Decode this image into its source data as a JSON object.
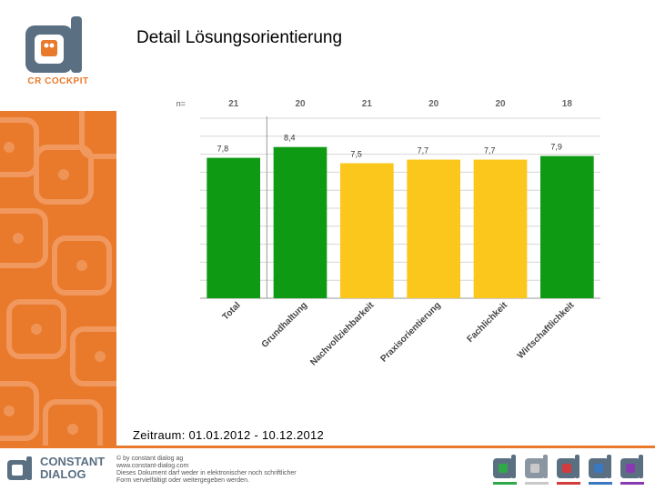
{
  "header": {
    "title": "Detail Lösungsorientierung"
  },
  "logo": {
    "text": "CR COCKPIT"
  },
  "period": "Zeitraum: 01.01.2012 - 10.12.2012",
  "footer": {
    "company_line1": "CONSTANT",
    "company_line2": "DIALOG",
    "copyright_lines": [
      "© by constant dialog ag",
      "www.constant-dialog.com",
      "Dieses Dokument darf weder in elektronischer noch schriftlicher",
      "Form vervielfältigt oder weitergegeben werden."
    ]
  },
  "colors": {
    "accent": "#e9792b",
    "green": "#0f9a14",
    "yellow": "#fcc71c"
  },
  "chart_data": {
    "type": "bar",
    "n_label": "n=",
    "categories": [
      "Total",
      "Grundhaltung",
      "Nachvollziehbarkeit",
      "Praxisorientierung",
      "Fachlichkeit",
      "Wirtschaftlichkeit"
    ],
    "n": [
      "21",
      "20",
      "21",
      "20",
      "20",
      "18"
    ],
    "values": [
      7.8,
      8.4,
      7.5,
      7.7,
      7.7,
      7.9
    ],
    "value_labels": [
      "7,8",
      "8,4",
      "7,5",
      "7,7",
      "7,7",
      "7,9"
    ],
    "colors": [
      "#0f9a14",
      "#0f9a14",
      "#fcc71c",
      "#fcc71c",
      "#fcc71c",
      "#0f9a14"
    ],
    "ylim": [
      0,
      10
    ],
    "grid": true
  }
}
